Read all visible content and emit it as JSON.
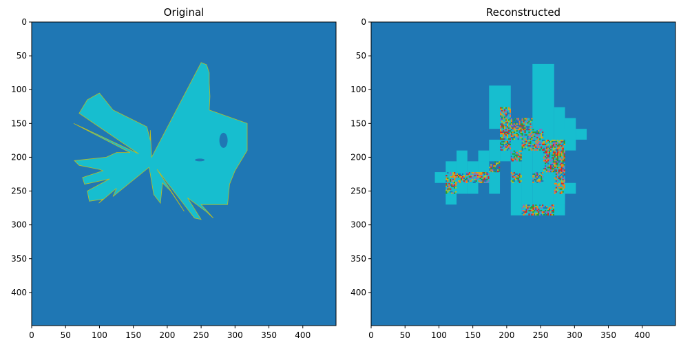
{
  "chart_data": [
    {
      "type": "heatmap",
      "title": "Original",
      "xlim": [
        0,
        449
      ],
      "ylim": [
        449,
        0
      ],
      "x_ticks": [
        0,
        50,
        100,
        150,
        200,
        250,
        300,
        350,
        400
      ],
      "y_ticks": [
        0,
        50,
        100,
        150,
        200,
        250,
        300,
        350,
        400
      ],
      "colors": {
        "background": "#1f77b4",
        "object": "#17becf",
        "edge": "#bcbd22"
      },
      "object_outline": [
        [
          60,
          250
        ],
        [
          63,
          258
        ],
        [
          75,
          262
        ],
        [
          90,
          262
        ],
        [
          110,
          263
        ],
        [
          130,
          262
        ],
        [
          150,
          318
        ],
        [
          190,
          318
        ],
        [
          220,
          300
        ],
        [
          240,
          292
        ],
        [
          270,
          289
        ],
        [
          290,
          268
        ],
        [
          292,
          250
        ],
        [
          290,
          240
        ],
        [
          280,
          225
        ],
        [
          268,
          190
        ],
        [
          255,
          180
        ],
        [
          225,
          175
        ],
        [
          215,
          173
        ],
        [
          195,
          158
        ],
        [
          193,
          145
        ],
        [
          193,
          125
        ],
        [
          200,
          110
        ],
        [
          218,
          100
        ],
        [
          220,
          105
        ],
        [
          232,
          115
        ],
        [
          246,
          125
        ],
        [
          258,
          120
        ],
        [
          262,
          105
        ],
        [
          268,
          99
        ],
        [
          265,
          85
        ],
        [
          250,
          82
        ],
        [
          240,
          78
        ],
        [
          230,
          75
        ],
        [
          212,
          70
        ],
        [
          205,
          63
        ],
        [
          150,
          62
        ],
        [
          135,
          70
        ],
        [
          115,
          82
        ],
        [
          105,
          100
        ],
        [
          130,
          120
        ],
        [
          135,
          130
        ],
        [
          155,
          170
        ],
        [
          160,
          175
        ],
        [
          175,
          175
        ],
        [
          200,
          177
        ],
        [
          218,
          185
        ],
        [
          238,
          193
        ],
        [
          250,
          205
        ],
        [
          260,
          230
        ],
        [
          270,
          250
        ],
        [
          280,
          257
        ]
      ]
    },
    {
      "type": "heatmap",
      "title": "Reconstructed",
      "xlim": [
        0,
        449
      ],
      "ylim": [
        449,
        0
      ],
      "x_ticks": [
        0,
        50,
        100,
        150,
        200,
        250,
        300,
        350,
        400
      ],
      "y_ticks": [
        0,
        50,
        100,
        150,
        200,
        250,
        300,
        350,
        400
      ],
      "colors": {
        "background": "#1f77b4",
        "object": "#17becf",
        "noise": [
          "#d62728",
          "#9467bd",
          "#bcbd22",
          "#2ca02c",
          "#ff7f0e",
          "#1f77b4"
        ]
      },
      "blocks": [
        [
          238,
          270,
          62,
          286
        ],
        [
          270,
          286,
          126,
          286
        ],
        [
          222,
          238,
          142,
          286
        ],
        [
          206,
          222,
          158,
          286
        ],
        [
          190,
          206,
          142,
          174
        ],
        [
          174,
          206,
          94,
          158
        ],
        [
          190,
          206,
          174,
          206
        ],
        [
          174,
          190,
          174,
          206
        ],
        [
          158,
          174,
          190,
          238
        ],
        [
          158,
          174,
          206,
          222
        ],
        [
          142,
          158,
          206,
          238
        ],
        [
          126,
          142,
          190,
          238
        ],
        [
          110,
          126,
          206,
          238
        ],
        [
          94,
          110,
          222,
          238
        ],
        [
          110,
          126,
          238,
          270
        ],
        [
          126,
          142,
          238,
          254
        ],
        [
          142,
          158,
          238,
          254
        ],
        [
          174,
          190,
          222,
          254
        ],
        [
          158,
          174,
          222,
          238
        ],
        [
          286,
          302,
          158,
          174
        ],
        [
          302,
          318,
          158,
          174
        ],
        [
          286,
          302,
          142,
          190
        ],
        [
          270,
          286,
          254,
          270
        ],
        [
          286,
          302,
          238,
          254
        ]
      ],
      "noise_blocks": [
        [
          190,
          206,
          126,
          158
        ],
        [
          206,
          222,
          142,
          174
        ],
        [
          222,
          238,
          142,
          190
        ],
        [
          238,
          254,
          158,
          190
        ],
        [
          254,
          270,
          174,
          206
        ],
        [
          270,
          286,
          174,
          206
        ],
        [
          190,
          206,
          158,
          190
        ],
        [
          206,
          222,
          190,
          206
        ],
        [
          174,
          190,
          206,
          222
        ],
        [
          158,
          174,
          222,
          238
        ],
        [
          142,
          158,
          222,
          238
        ],
        [
          126,
          142,
          222,
          238
        ],
        [
          110,
          126,
          222,
          238
        ],
        [
          110,
          126,
          238,
          254
        ],
        [
          206,
          222,
          222,
          238
        ],
        [
          238,
          254,
          222,
          238
        ],
        [
          254,
          270,
          206,
          222
        ],
        [
          270,
          286,
          190,
          254
        ],
        [
          238,
          270,
          270,
          286
        ],
        [
          222,
          238,
          270,
          286
        ]
      ]
    }
  ]
}
